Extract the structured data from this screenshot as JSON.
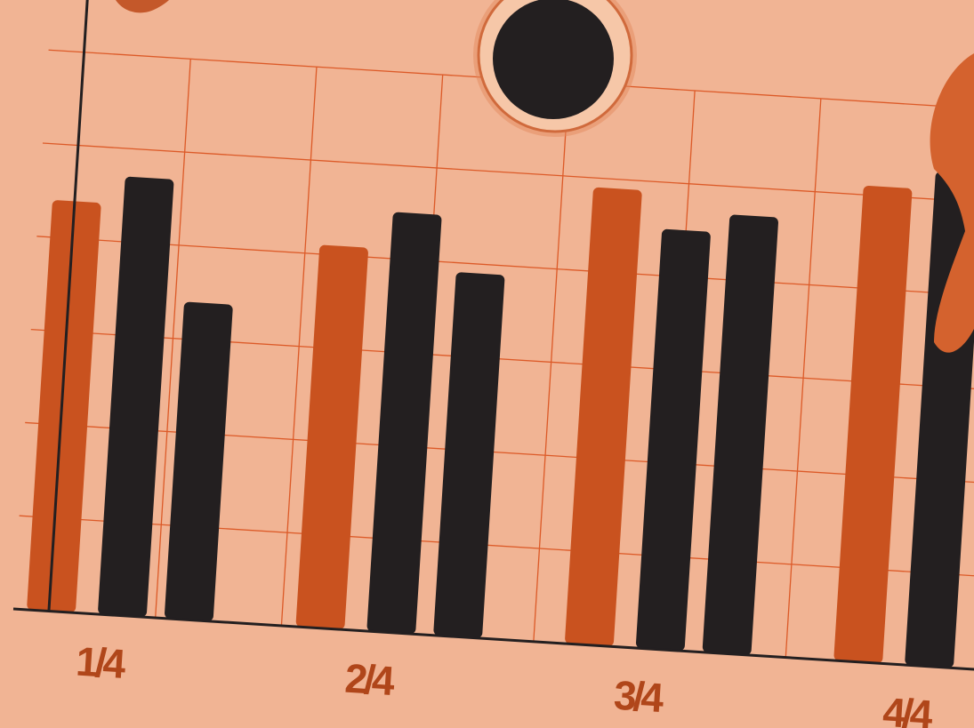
{
  "chart_data": {
    "type": "bar",
    "categories": [
      "1/4",
      "2/4",
      "3/4",
      "4/4"
    ],
    "series": [
      {
        "color": "#c9521f",
        "values": [
          4.4,
          4.1,
          4.9,
          5.1
        ]
      },
      {
        "color": "#231f20",
        "values": [
          4.7,
          4.5,
          4.5,
          5.3
        ]
      },
      {
        "color": "#231f20",
        "values": [
          3.4,
          3.9,
          4.7,
          null
        ]
      }
    ],
    "ylim": [
      0,
      6
    ],
    "grid": true
  }
}
